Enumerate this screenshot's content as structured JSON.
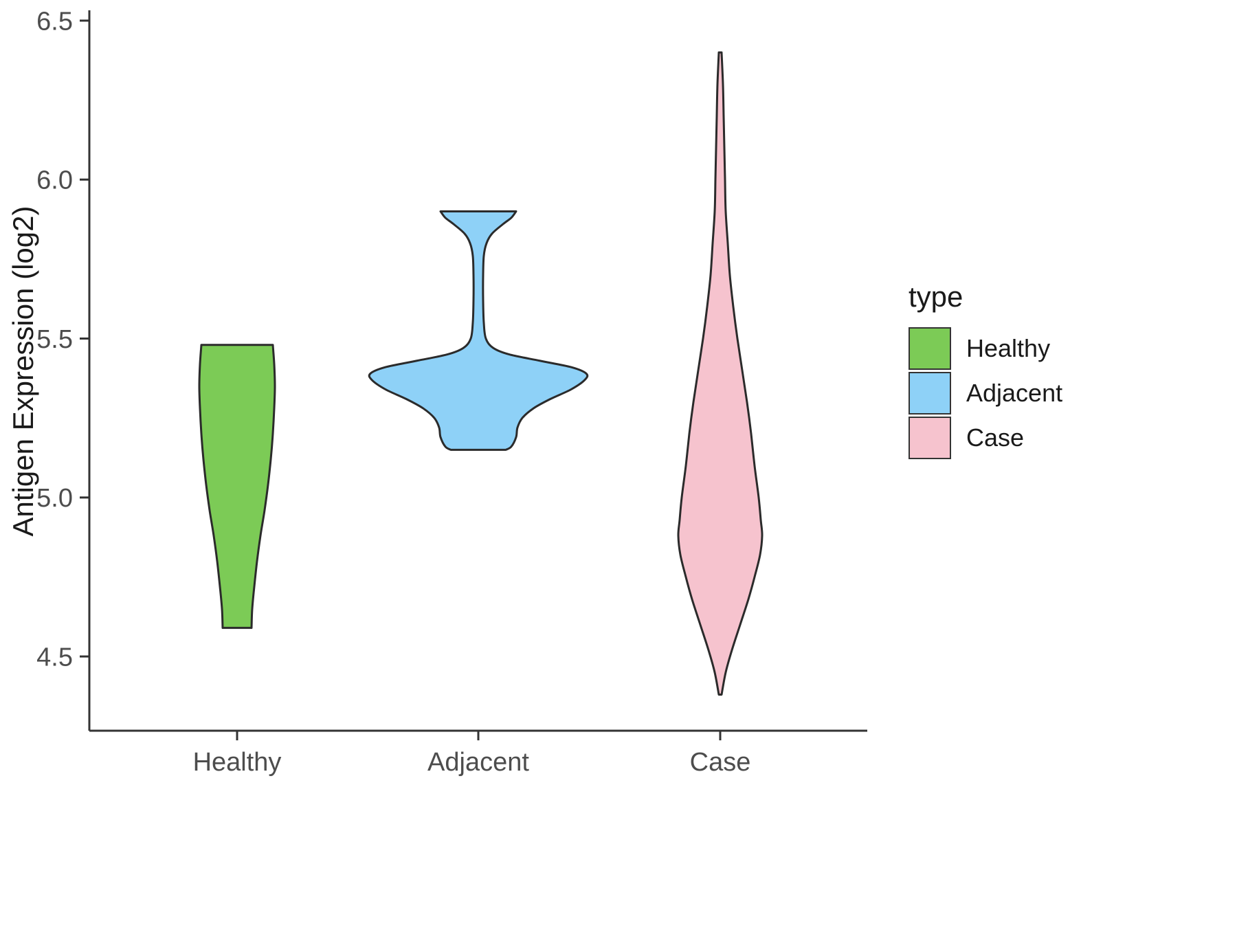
{
  "chart_data": {
    "type": "violin",
    "title": "",
    "xlabel": "",
    "ylabel": "Antigen Expression (log2)",
    "categories": [
      "Healthy",
      "Adjacent",
      "Case"
    ],
    "y_ticks": [
      "6.5",
      "6.0",
      "5.5",
      "5.0",
      "4.5"
    ],
    "y_tick_values": [
      6.5,
      6.0,
      5.5,
      5.0,
      4.5
    ],
    "ylim": [
      4.27,
      6.53
    ],
    "grid": "off",
    "stroke_color": "#2b2b2b",
    "legend": {
      "title": "type",
      "position": "right",
      "items": [
        {
          "label": "Healthy",
          "color": "#7ccb56"
        },
        {
          "label": "Adjacent",
          "color": "#8ed1f7"
        },
        {
          "label": "Case",
          "color": "#f6c3ce"
        }
      ]
    },
    "series": [
      {
        "name": "Healthy",
        "color": "#7ccb56",
        "y_min": 4.59,
        "y_max": 5.48,
        "profile": [
          [
            5.48,
            52
          ],
          [
            5.42,
            54
          ],
          [
            5.35,
            55
          ],
          [
            5.28,
            54
          ],
          [
            5.2,
            52
          ],
          [
            5.12,
            49
          ],
          [
            5.04,
            45
          ],
          [
            4.96,
            40
          ],
          [
            4.88,
            34
          ],
          [
            4.8,
            29
          ],
          [
            4.72,
            25
          ],
          [
            4.65,
            22
          ],
          [
            4.59,
            21
          ]
        ]
      },
      {
        "name": "Adjacent",
        "color": "#8ed1f7",
        "y_min": 5.15,
        "y_max": 5.9,
        "profile": [
          [
            5.9,
            55
          ],
          [
            5.88,
            48
          ],
          [
            5.86,
            36
          ],
          [
            5.83,
            20
          ],
          [
            5.8,
            12
          ],
          [
            5.76,
            8
          ],
          [
            5.7,
            7
          ],
          [
            5.62,
            7
          ],
          [
            5.55,
            8
          ],
          [
            5.5,
            11
          ],
          [
            5.47,
            22
          ],
          [
            5.45,
            45
          ],
          [
            5.43,
            90
          ],
          [
            5.41,
            135
          ],
          [
            5.39,
            157
          ],
          [
            5.37,
            155
          ],
          [
            5.34,
            135
          ],
          [
            5.31,
            105
          ],
          [
            5.28,
            80
          ],
          [
            5.25,
            64
          ],
          [
            5.22,
            57
          ],
          [
            5.19,
            55
          ],
          [
            5.16,
            48
          ],
          [
            5.15,
            40
          ]
        ]
      },
      {
        "name": "Case",
        "color": "#f6c3ce",
        "y_min": 4.38,
        "y_max": 6.4,
        "profile": [
          [
            6.4,
            2
          ],
          [
            6.3,
            4
          ],
          [
            6.2,
            5
          ],
          [
            6.1,
            6
          ],
          [
            6.0,
            7
          ],
          [
            5.9,
            8
          ],
          [
            5.8,
            11
          ],
          [
            5.7,
            14
          ],
          [
            5.6,
            19
          ],
          [
            5.5,
            25
          ],
          [
            5.4,
            32
          ],
          [
            5.3,
            39
          ],
          [
            5.2,
            45
          ],
          [
            5.1,
            50
          ],
          [
            5.0,
            56
          ],
          [
            4.93,
            59
          ],
          [
            4.88,
            61
          ],
          [
            4.82,
            58
          ],
          [
            4.75,
            50
          ],
          [
            4.68,
            41
          ],
          [
            4.6,
            29
          ],
          [
            4.52,
            17
          ],
          [
            4.45,
            8
          ],
          [
            4.38,
            2
          ]
        ]
      }
    ]
  }
}
